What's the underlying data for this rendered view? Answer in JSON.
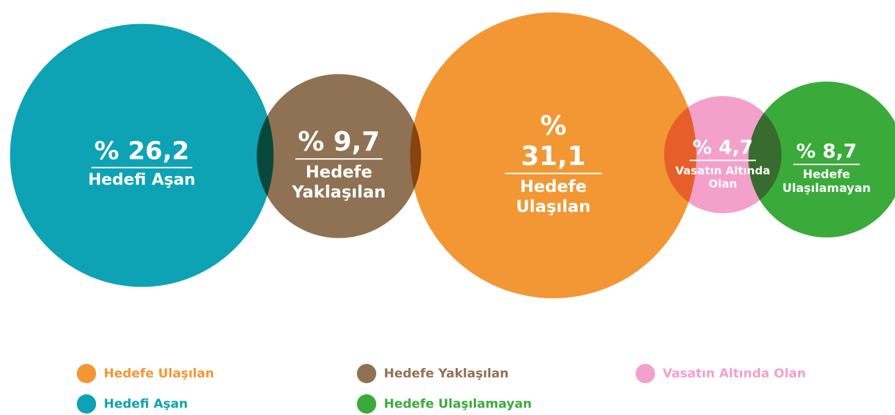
{
  "chart_data": {
    "type": "bubble",
    "categories": [
      "Hedefi Aşan",
      "Hedefe Yaklaşılan",
      "Hedefe Ulaşılan",
      "Vasatın Altında Olan",
      "Hedefe Ulaşılamayan"
    ],
    "values": [
      26.2,
      9.7,
      31.1,
      4.7,
      8.7
    ],
    "value_labels": [
      "% 26,2",
      "% 9,7",
      "% 31,1",
      "% 4,7",
      "% 8,7"
    ],
    "colors": [
      "#0ea2b5",
      "#8f7153",
      "#f29734",
      "#f3a0ca",
      "#3aab3b"
    ]
  }
}
